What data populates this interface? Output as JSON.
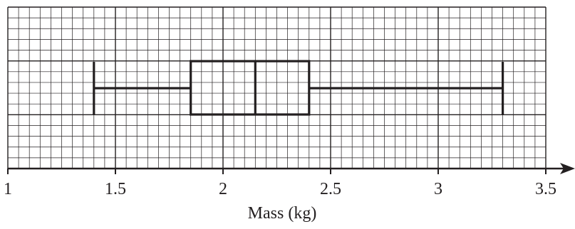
{
  "chart_data": {
    "type": "box",
    "xlabel": "Mass (kg)",
    "xlim": [
      1,
      3.5
    ],
    "x_ticks": [
      1,
      1.5,
      2,
      2.5,
      3,
      3.5
    ],
    "x_tick_labels": [
      "1",
      "1.5",
      "2",
      "2.5",
      "3",
      "3.5"
    ],
    "grid": true,
    "minor_grid_step": 0.05,
    "major_grid_step": 0.5,
    "box": {
      "min": 1.4,
      "q1": 1.85,
      "median": 2.15,
      "q3": 2.4,
      "max": 3.3
    },
    "colors": {
      "ink": "#231f20",
      "grid": "#231f20",
      "background": "#ffffff"
    }
  }
}
